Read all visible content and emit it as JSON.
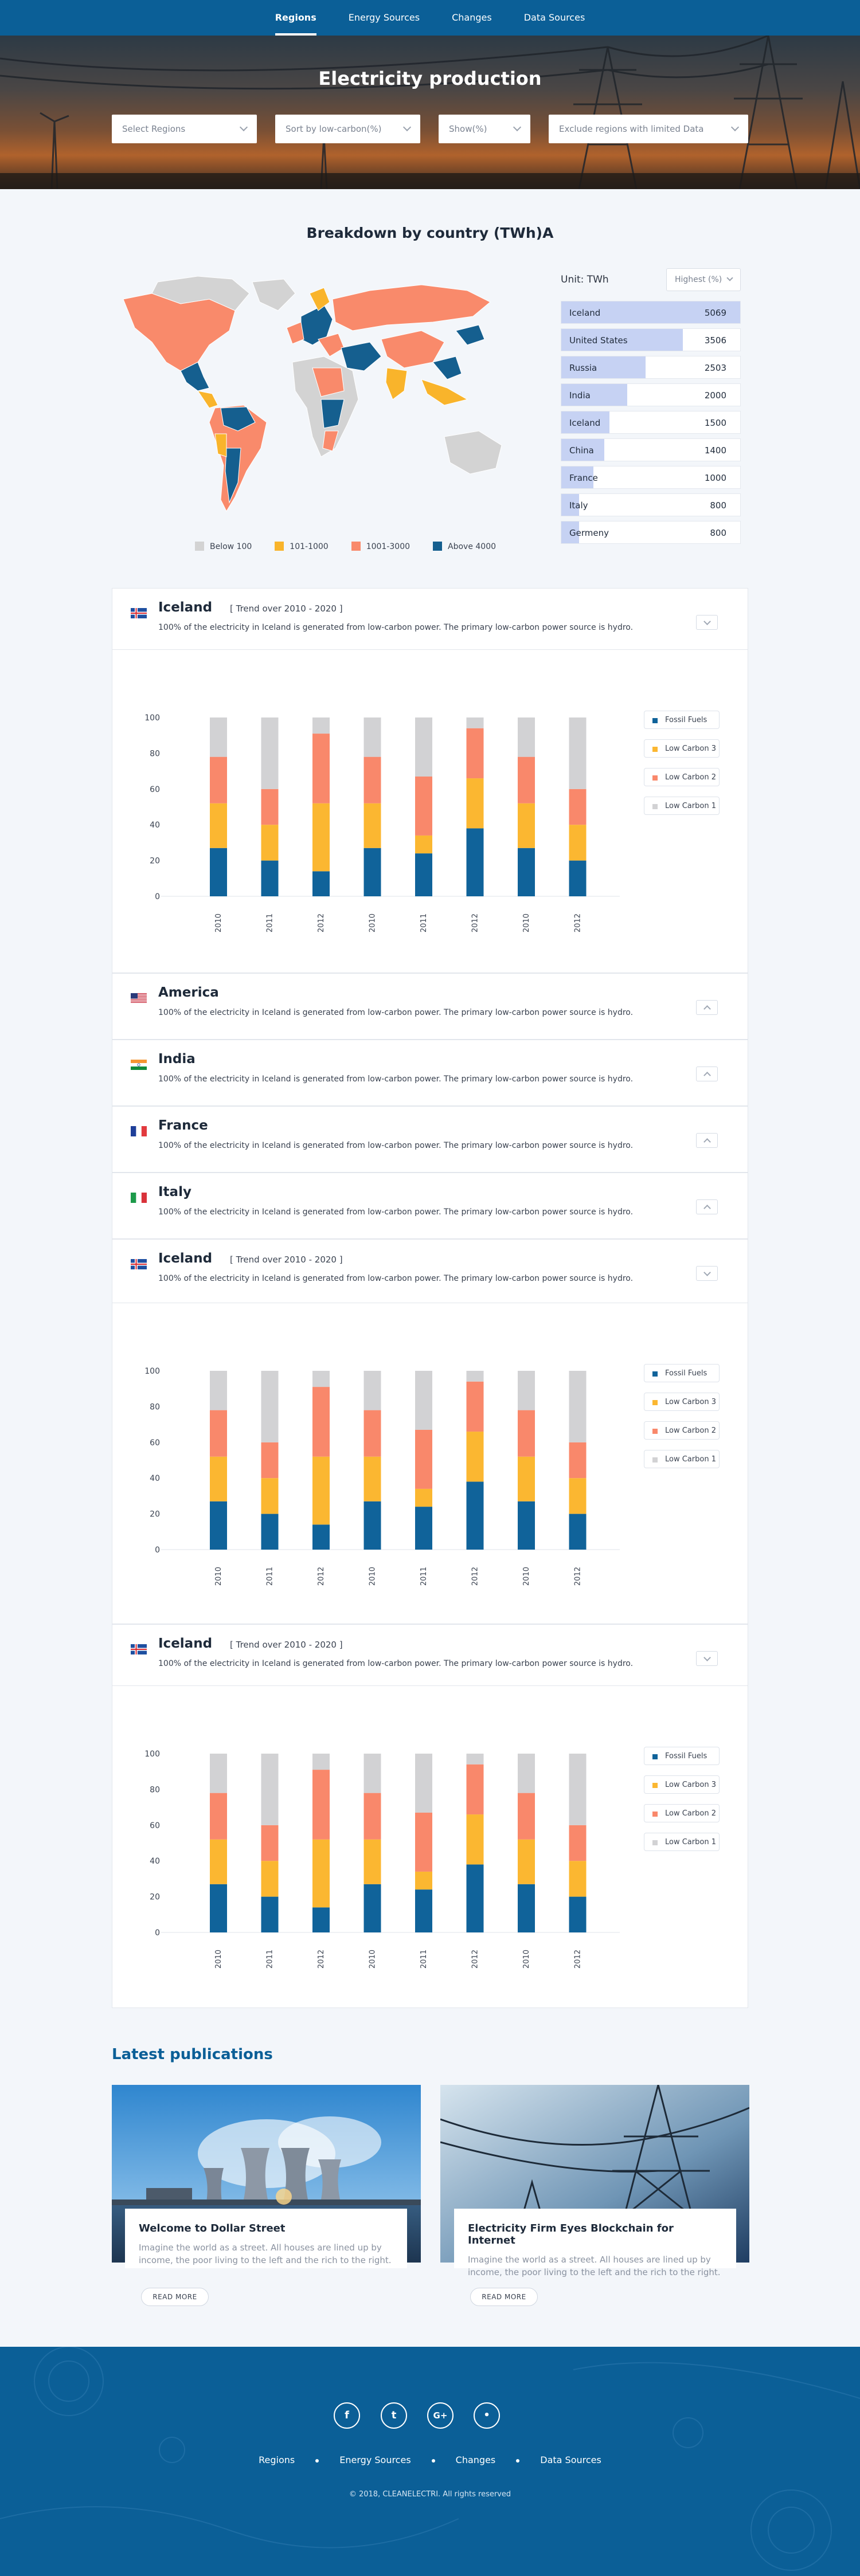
{
  "nav": {
    "items": [
      "Regions",
      "Energy Sources",
      "Changes",
      "Data Sources"
    ],
    "active": "Regions"
  },
  "hero": {
    "title": "Electricity production",
    "filters": [
      "Select Regions",
      "Sort by low-carbon(%)",
      "Show(%)",
      "Exclude regions with limited Data"
    ]
  },
  "breakdown": {
    "title": "Breakdown by country (TWh)A",
    "unit_label": "Unit: TWh",
    "sort_label": "Highest (%)",
    "map_legend": [
      {
        "label": "Below 100",
        "color": "#d3d3d3"
      },
      {
        "label": "101-1000",
        "color": "#f9b42b"
      },
      {
        "label": "1001-3000",
        "color": "#f98a6b"
      },
      {
        "label": "Above 4000",
        "color": "#155f8f"
      }
    ],
    "ranking": [
      {
        "name": "Iceland",
        "value": 5069,
        "fill": 1.0
      },
      {
        "name": "United States",
        "value": 3506,
        "fill": 0.68
      },
      {
        "name": "Russia",
        "value": 2503,
        "fill": 0.47
      },
      {
        "name": "India",
        "value": 2000,
        "fill": 0.37
      },
      {
        "name": "Iceland",
        "value": 1500,
        "fill": 0.27
      },
      {
        "name": "China",
        "value": 1400,
        "fill": 0.24
      },
      {
        "name": "France",
        "value": 1000,
        "fill": 0.18
      },
      {
        "name": "Italy",
        "value": 800,
        "fill": 0.1
      },
      {
        "name": "Germeny",
        "value": 800,
        "fill": 0.1
      }
    ]
  },
  "colors": {
    "fossil": "#10639a",
    "low3": "#fbb731",
    "low2": "#f9886b",
    "low1": "#d2d2d4",
    "accent": "#0b5f97"
  },
  "panels": [
    {
      "name": "Iceland",
      "flag": "iceland-flag",
      "trend": "[ Trend over 2010 - 2020 ]",
      "desc": "100% of the electricity in Iceland is generated from low-carbon power. The primary low-carbon power source is hydro.",
      "expanded": true
    },
    {
      "name": "America",
      "flag": "usa-flag",
      "trend": "",
      "desc": "100% of the electricity in Iceland is generated from low-carbon power. The primary low-carbon power source is hydro.",
      "expanded": false
    },
    {
      "name": "India",
      "flag": "india-flag",
      "trend": "",
      "desc": "100% of the electricity in Iceland is generated from low-carbon power. The primary low-carbon power source is hydro.",
      "expanded": false
    },
    {
      "name": "France",
      "flag": "france-flag",
      "trend": "",
      "desc": "100% of the electricity in Iceland is generated from low-carbon power. The primary low-carbon power source is hydro.",
      "expanded": false
    },
    {
      "name": "Italy",
      "flag": "italy-flag",
      "trend": "",
      "desc": "100% of the electricity in Iceland is generated from low-carbon power. The primary low-carbon power source is hydro.",
      "expanded": false
    },
    {
      "name": "Iceland",
      "flag": "iceland-flag",
      "trend": "[ Trend over 2010 - 2020 ]",
      "desc": "100% of the electricity in Iceland is generated from low-carbon power. The primary low-carbon power source is hydro.",
      "expanded": true
    },
    {
      "name": "Iceland",
      "flag": "iceland-flag",
      "trend": "[ Trend over 2010 - 2020 ]",
      "desc": "100% of the electricity in Iceland is generated from low-carbon power. The primary low-carbon power source is hydro.",
      "expanded": true
    }
  ],
  "chart_data": {
    "type": "bar",
    "stacked": true,
    "categories": [
      "2010",
      "2011",
      "2012",
      "2010",
      "2011",
      "2012",
      "2010",
      "2012"
    ],
    "series": [
      {
        "name": "Fossil Fuels",
        "color": "#10639a",
        "values": [
          27,
          20,
          14,
          27,
          24,
          38,
          27,
          20
        ]
      },
      {
        "name": "Low Carbon 3",
        "color": "#fbb731",
        "values": [
          25,
          20,
          38,
          25,
          10,
          28,
          25,
          20
        ]
      },
      {
        "name": "Low Carbon 2",
        "color": "#f9886b",
        "values": [
          26,
          20,
          39,
          26,
          33,
          28,
          26,
          20
        ]
      },
      {
        "name": "Low Carbon 1",
        "color": "#d2d2d4",
        "values": [
          22,
          40,
          9,
          22,
          33,
          6,
          22,
          40
        ]
      }
    ],
    "yticks": [
      0,
      20,
      40,
      60,
      80,
      100
    ],
    "ylim": [
      0,
      100
    ],
    "legend": [
      "Fossil Fuels",
      "Low Carbon 3",
      "Low Carbon 2",
      "Low Carbon 1"
    ],
    "legend_position": "right"
  },
  "publications": {
    "title": "Latest publications",
    "items": [
      {
        "title": "Welcome to Dollar Street",
        "text": "Imagine the world as a street. All houses are lined up by income, the poor living to the left and the rich to the right.",
        "button": "READ MORE"
      },
      {
        "title": "Electricity Firm Eyes Blockchain for Internet",
        "text": "Imagine the world as a street. All houses are lined up by income, the poor living to the left and the rich to the right.",
        "button": "READ MORE"
      }
    ]
  },
  "footer": {
    "social": [
      "f",
      "t",
      "G+",
      "•"
    ],
    "nav": [
      "Regions",
      "Energy Sources",
      "Changes",
      "Data Sources"
    ],
    "copyright": "© 2018, CLEANELECTRI. All rights reserved"
  }
}
